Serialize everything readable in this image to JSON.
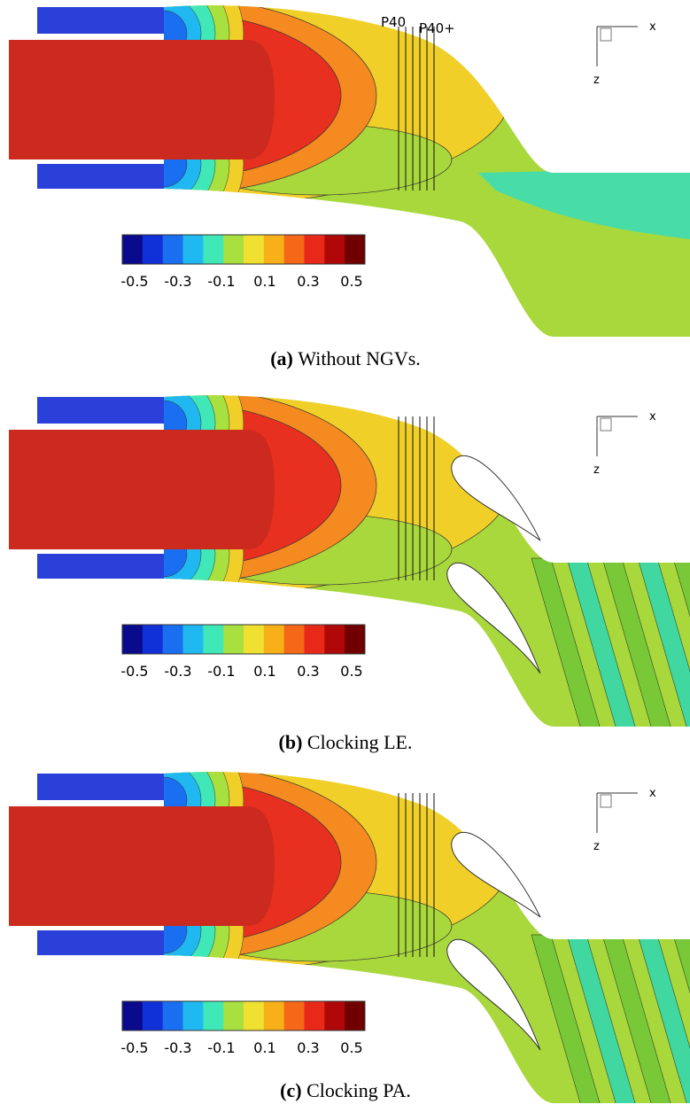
{
  "panels": [
    {
      "label": "(a)",
      "caption": "Without NGVs.",
      "probe_labels": [
        "P40",
        "P40+"
      ]
    },
    {
      "label": "(b)",
      "caption": "Clocking LE."
    },
    {
      "label": "(c)",
      "caption": "Clocking PA."
    }
  ],
  "axes": {
    "x": "x",
    "z": "z"
  },
  "colorbar": {
    "colors": [
      "#0a0a8c",
      "#1030d8",
      "#1a6ef0",
      "#20b8f0",
      "#40e8b8",
      "#a8e040",
      "#f0e030",
      "#f8b018",
      "#f46818",
      "#e82818",
      "#b00808",
      "#700000"
    ],
    "ticks": [
      "-0.5",
      "-0.3",
      "-0.1",
      "0.1",
      "0.3",
      "0.5"
    ]
  }
}
